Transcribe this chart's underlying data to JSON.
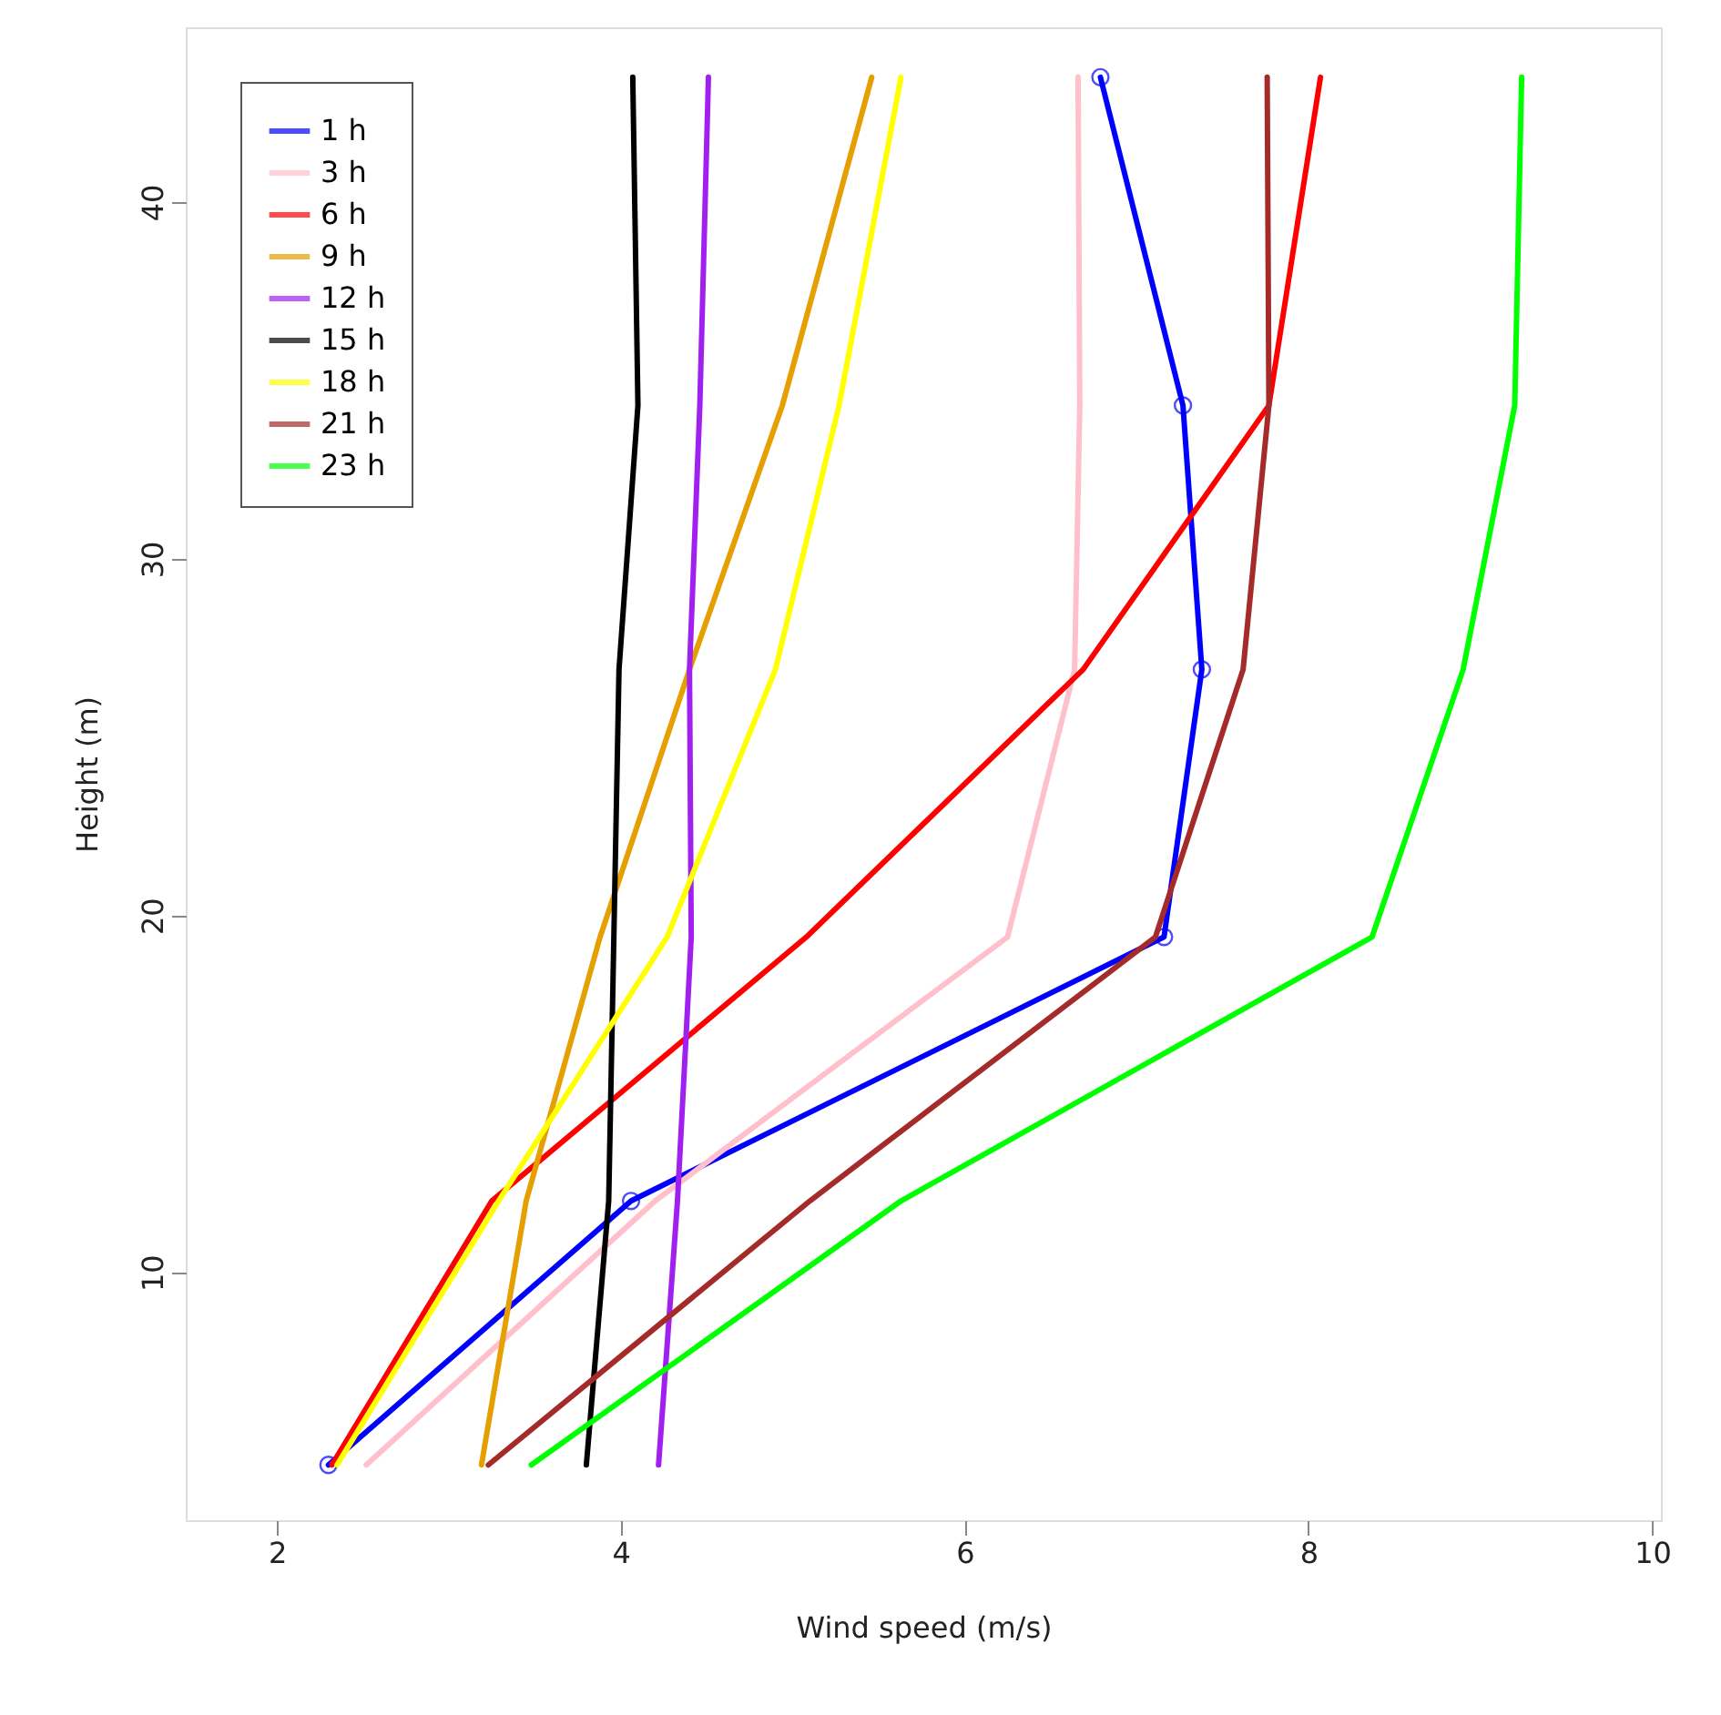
{
  "chart_data": {
    "type": "line",
    "xlabel": "Wind speed (m/s)",
    "ylabel": "Height (m)",
    "xlim": [
      1.47,
      10.05
    ],
    "ylim": [
      3.05,
      44.9
    ],
    "xticks": [
      2,
      4,
      6,
      8,
      10
    ],
    "yticks": [
      10,
      20,
      30,
      40
    ],
    "grid": false,
    "legend": "top left",
    "line_style": "solid",
    "series": [
      {
        "name": "1 h",
        "color": "#0000ff",
        "marker": "circle",
        "x": [
          2.3,
          4.06,
          7.16,
          7.38,
          7.27,
          6.79
        ],
        "values": [
          4.6,
          12,
          19.4,
          26.9,
          34.3,
          43.5
        ]
      },
      {
        "name": "3 h",
        "color": "#ffc0cb",
        "x": [
          2.52,
          4.2,
          6.25,
          6.64,
          6.67,
          6.66
        ],
        "values": [
          4.6,
          12,
          19.4,
          26.9,
          34.3,
          43.5
        ]
      },
      {
        "name": "6 h",
        "color": "#ff0000",
        "x": [
          2.32,
          3.25,
          5.08,
          6.69,
          7.77,
          8.07
        ],
        "values": [
          4.6,
          12,
          19.4,
          26.9,
          34.3,
          43.5
        ]
      },
      {
        "name": "9 h",
        "color": "#e69f00",
        "x": [
          3.19,
          3.45,
          3.88,
          4.4,
          4.94,
          5.46
        ],
        "values": [
          4.6,
          12,
          19.4,
          26.9,
          34.3,
          43.5
        ]
      },
      {
        "name": "12 h",
        "color": "#a020f0",
        "x": [
          4.22,
          4.33,
          4.41,
          4.4,
          4.46,
          4.51
        ],
        "values": [
          4.6,
          12,
          19.4,
          26.9,
          34.3,
          43.5
        ]
      },
      {
        "name": "15 h",
        "color": "#000000",
        "x": [
          3.8,
          3.93,
          3.96,
          3.99,
          4.1,
          4.07
        ],
        "values": [
          4.6,
          12,
          19.4,
          26.9,
          34.3,
          43.5
        ]
      },
      {
        "name": "18 h",
        "color": "#ffff00",
        "x": [
          2.35,
          3.29,
          4.27,
          4.9,
          5.27,
          5.63
        ],
        "values": [
          4.6,
          12,
          19.4,
          26.9,
          34.3,
          43.5
        ]
      },
      {
        "name": "21 h",
        "color": "#a52a2a",
        "x": [
          3.23,
          5.1,
          7.11,
          7.62,
          7.77,
          7.76
        ],
        "values": [
          4.6,
          12,
          19.4,
          26.9,
          34.3,
          43.5
        ]
      },
      {
        "name": "23 h",
        "color": "#00ff00",
        "x": [
          3.48,
          5.63,
          8.37,
          8.9,
          9.2,
          9.24
        ],
        "values": [
          4.6,
          12,
          19.4,
          26.9,
          34.3,
          43.5
        ]
      }
    ]
  }
}
